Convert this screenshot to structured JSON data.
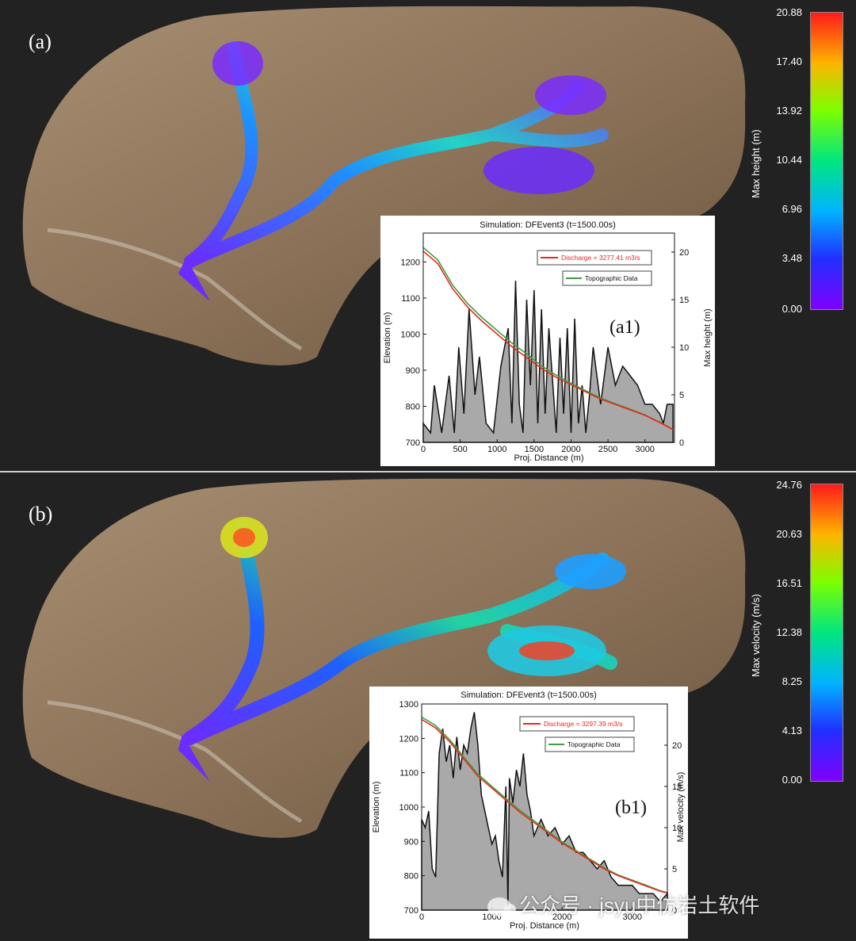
{
  "colors": {
    "background": "#222222",
    "terrain_light": "#a88f73",
    "terrain_dark": "#6b5640",
    "discharge_line": "#e8281e",
    "topo_line": "#3f9e3f",
    "profile_fill": "#a9a9a9",
    "profile_line": "#111111"
  },
  "panels": [
    {
      "label": "(a)",
      "colorbar": {
        "title": "Max height (m)",
        "ticks": [
          "20.88",
          "17.40",
          "13.92",
          "10.44",
          "6.96",
          "3.48",
          "0.00"
        ]
      },
      "inset": {
        "title": "Simulation: DFEvent3  (t=1500.00s)",
        "label": "(a1)",
        "legend_discharge": "Discharge = 3277.41 m3/s",
        "legend_topo": "Topographic Data",
        "xlabel": "Proj. Distance (m)",
        "ylabel_left": "Elevation (m)",
        "ylabel_right": "Max height (m)",
        "x_ticks": [
          "0",
          "500",
          "1000",
          "1500",
          "2000",
          "2500",
          "3000"
        ],
        "y_left_ticks": [
          "700",
          "800",
          "900",
          "1000",
          "1100",
          "1200"
        ],
        "y_right_ticks": [
          "0",
          "5",
          "10",
          "15",
          "20"
        ]
      }
    },
    {
      "label": "(b)",
      "colorbar": {
        "title": "Max velocity (m/s)",
        "ticks": [
          "24.76",
          "20.63",
          "16.51",
          "12.38",
          "8.25",
          "4.13",
          "0.00"
        ]
      },
      "inset": {
        "title": "Simulation: DFEvent3  (t=1500.00s)",
        "label": "(b1)",
        "legend_discharge": "Discharge = 3297.39 m3/s",
        "legend_topo": "Topographic Data",
        "xlabel": "Proj. Distance (m)",
        "ylabel_left": "Elevation (m)",
        "ylabel_right": "Max velocity (m/s)",
        "x_ticks": [
          "0",
          "1000",
          "2000",
          "3000"
        ],
        "y_left_ticks": [
          "700",
          "800",
          "900",
          "1000",
          "1100",
          "1200",
          "1300"
        ],
        "y_right_ticks": [
          "0",
          "5",
          "10",
          "15",
          "20"
        ]
      }
    }
  ],
  "chart_data": [
    {
      "type": "line",
      "title": "Simulation: DFEvent3  (t=1500.00s)",
      "xlabel": "Proj. Distance (m)",
      "ylabel": "Elevation (m)",
      "y2label": "Max height (m)",
      "xlim": [
        0,
        3400
      ],
      "ylim": [
        700,
        1280
      ],
      "y2lim": [
        0,
        22
      ],
      "series": [
        {
          "name": "Discharge = 3277.41 m3/s",
          "axis": "left",
          "x": [
            0,
            200,
            400,
            600,
            800,
            1000,
            1200,
            1400,
            1600,
            1800,
            2000,
            2200,
            2400,
            2600,
            2800,
            3000,
            3200,
            3380
          ],
          "y": [
            1230,
            1195,
            1125,
            1075,
            1035,
            1000,
            965,
            935,
            905,
            880,
            860,
            840,
            820,
            805,
            790,
            775,
            755,
            735
          ]
        },
        {
          "name": "Topographic Data",
          "axis": "left",
          "x": [
            0,
            200,
            400,
            600,
            800,
            1000,
            1200,
            1400,
            1600,
            1800,
            2000,
            2200,
            2400,
            2600,
            2800,
            3000,
            3200,
            3380
          ],
          "y": [
            1240,
            1205,
            1135,
            1085,
            1045,
            1010,
            975,
            945,
            912,
            886,
            864,
            843,
            823,
            807,
            792,
            776,
            756,
            736
          ]
        },
        {
          "name": "",
          "axis": "right",
          "fill": true,
          "x": [
            0,
            100,
            150,
            250,
            350,
            420,
            480,
            550,
            620,
            700,
            760,
            850,
            950,
            1050,
            1150,
            1200,
            1250,
            1300,
            1350,
            1400,
            1450,
            1500,
            1550,
            1600,
            1650,
            1700,
            1800,
            1850,
            1900,
            1950,
            2000,
            2050,
            2100,
            2150,
            2200,
            2250,
            2300,
            2400,
            2500,
            2600,
            2700,
            2800,
            2900,
            3000,
            3100,
            3200,
            3250,
            3300,
            3380
          ],
          "y": [
            2,
            1,
            6,
            1,
            7,
            1,
            10,
            3,
            14,
            5,
            9,
            2,
            1,
            8,
            12,
            2,
            17,
            4,
            1,
            15,
            6,
            16,
            2,
            14,
            3,
            12,
            1,
            11,
            3,
            12,
            1,
            13,
            2,
            6,
            1,
            5,
            10,
            4,
            10,
            6,
            8,
            7,
            6,
            4,
            4,
            3,
            2,
            4,
            4
          ]
        }
      ]
    },
    {
      "type": "line",
      "title": "Simulation: DFEvent3  (t=1500.00s)",
      "xlabel": "Proj. Distance (m)",
      "ylabel": "Elevation (m)",
      "y2label": "Max velocity (m/s)",
      "xlim": [
        0,
        3500
      ],
      "ylim": [
        700,
        1300
      ],
      "y2lim": [
        0,
        25
      ],
      "series": [
        {
          "name": "Discharge = 3297.39 m3/s",
          "axis": "left",
          "x": [
            0,
            200,
            400,
            600,
            800,
            1000,
            1200,
            1400,
            1600,
            1800,
            2000,
            2200,
            2400,
            2600,
            2800,
            3000,
            3200,
            3400,
            3500
          ],
          "y": [
            1255,
            1230,
            1190,
            1140,
            1090,
            1055,
            1020,
            985,
            955,
            925,
            895,
            870,
            845,
            820,
            800,
            785,
            770,
            755,
            750
          ]
        },
        {
          "name": "Topographic Data",
          "axis": "left",
          "x": [
            0,
            200,
            400,
            600,
            800,
            1000,
            1200,
            1400,
            1600,
            1800,
            2000,
            2200,
            2400,
            2600,
            2800,
            3000,
            3200,
            3400,
            3500
          ],
          "y": [
            1262,
            1237,
            1196,
            1146,
            1096,
            1060,
            1025,
            990,
            960,
            929,
            899,
            873,
            848,
            823,
            802,
            787,
            772,
            756,
            751
          ]
        },
        {
          "name": "",
          "axis": "right",
          "fill": true,
          "x": [
            0,
            50,
            100,
            150,
            200,
            250,
            300,
            350,
            400,
            450,
            500,
            550,
            600,
            650,
            700,
            750,
            800,
            850,
            900,
            950,
            1000,
            1050,
            1100,
            1150,
            1200,
            1230,
            1250,
            1300,
            1350,
            1400,
            1450,
            1500,
            1550,
            1600,
            1650,
            1700,
            1800,
            1900,
            2000,
            2100,
            2200,
            2300,
            2400,
            2500,
            2600,
            2700,
            2800,
            2900,
            3000,
            3100,
            3200,
            3300,
            3400,
            3500
          ],
          "y": [
            11,
            10,
            12,
            5,
            4,
            19,
            22,
            18,
            20,
            16,
            21,
            17,
            20,
            19,
            22,
            24,
            20,
            14,
            12,
            10,
            8,
            9,
            6,
            4,
            15,
            0.5,
            16,
            13,
            17,
            15,
            19,
            14,
            12,
            9,
            10,
            11,
            9,
            10,
            8,
            9,
            7,
            7,
            6,
            5,
            6,
            4,
            3,
            3,
            3,
            2,
            2,
            2,
            1,
            2
          ]
        }
      ]
    }
  ]
}
